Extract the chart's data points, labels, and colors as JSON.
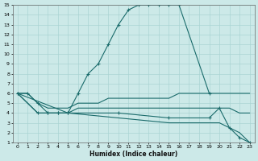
{
  "xlabel": "Humidex (Indice chaleur)",
  "background_color": "#cce9e8",
  "grid_color": "#aad4d3",
  "line_color": "#1a6b6b",
  "xlim": [
    -0.5,
    23.5
  ],
  "ylim": [
    1,
    15
  ],
  "xticks": [
    0,
    1,
    2,
    3,
    4,
    5,
    6,
    7,
    8,
    9,
    10,
    11,
    12,
    13,
    14,
    15,
    16,
    17,
    18,
    19,
    20,
    21,
    22,
    23
  ],
  "yticks": [
    1,
    2,
    3,
    4,
    5,
    6,
    7,
    8,
    9,
    10,
    11,
    12,
    13,
    14,
    15
  ],
  "line1_x": [
    0,
    1,
    2,
    3,
    4,
    5,
    6,
    7,
    8,
    9,
    10,
    11,
    12,
    13,
    14,
    15,
    16,
    19
  ],
  "line1_y": [
    6,
    6,
    5,
    4,
    4,
    4,
    6,
    8,
    9,
    11,
    13,
    14.5,
    15,
    15,
    15,
    15,
    15,
    6
  ],
  "line2_x": [
    0,
    1,
    2,
    3,
    4,
    5,
    6,
    7,
    8,
    9,
    10,
    11,
    12,
    13,
    14,
    15,
    16,
    17,
    18,
    19,
    20,
    21,
    22,
    23
  ],
  "line2_y": [
    6,
    6,
    5,
    4.5,
    4.5,
    4.5,
    5,
    5,
    5,
    5.5,
    5.5,
    5.5,
    5.5,
    5.5,
    5.5,
    5.5,
    6,
    6,
    6,
    6,
    6,
    6,
    6,
    6
  ],
  "line3_x": [
    0,
    2,
    3,
    4,
    5,
    6,
    7,
    8,
    9,
    10,
    11,
    12,
    13,
    14,
    15,
    16,
    17,
    18,
    19,
    20,
    21,
    22,
    23
  ],
  "line3_y": [
    6,
    4,
    4,
    4,
    4,
    4.5,
    4.5,
    4.5,
    4.5,
    4.5,
    4.5,
    4.5,
    4.5,
    4.5,
    4.5,
    4.5,
    4.5,
    4.5,
    4.5,
    4.5,
    4.5,
    4,
    4
  ],
  "line4_x": [
    0,
    2,
    3,
    4,
    5,
    10,
    15,
    19,
    20,
    21,
    22,
    23
  ],
  "line4_y": [
    6,
    4,
    4,
    4,
    4,
    4,
    3.5,
    3.5,
    4.5,
    2.5,
    1.5,
    1
  ],
  "line5_x": [
    0,
    5,
    10,
    15,
    19,
    20,
    21,
    22,
    23
  ],
  "line5_y": [
    6,
    4,
    3.5,
    3,
    3,
    3,
    2.5,
    2,
    1
  ]
}
